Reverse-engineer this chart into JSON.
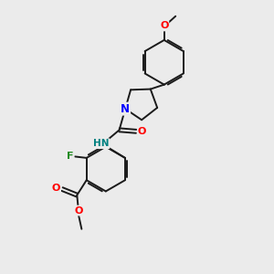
{
  "background_color": "#ebebeb",
  "bond_color": "#1a1a1a",
  "N_color": "#0000ff",
  "O_color": "#ff0000",
  "F_color": "#228b22",
  "H_color": "#008080",
  "figsize": [
    3.0,
    3.0
  ],
  "dpi": 100,
  "xlim": [
    0,
    10
  ],
  "ylim": [
    0,
    10
  ]
}
